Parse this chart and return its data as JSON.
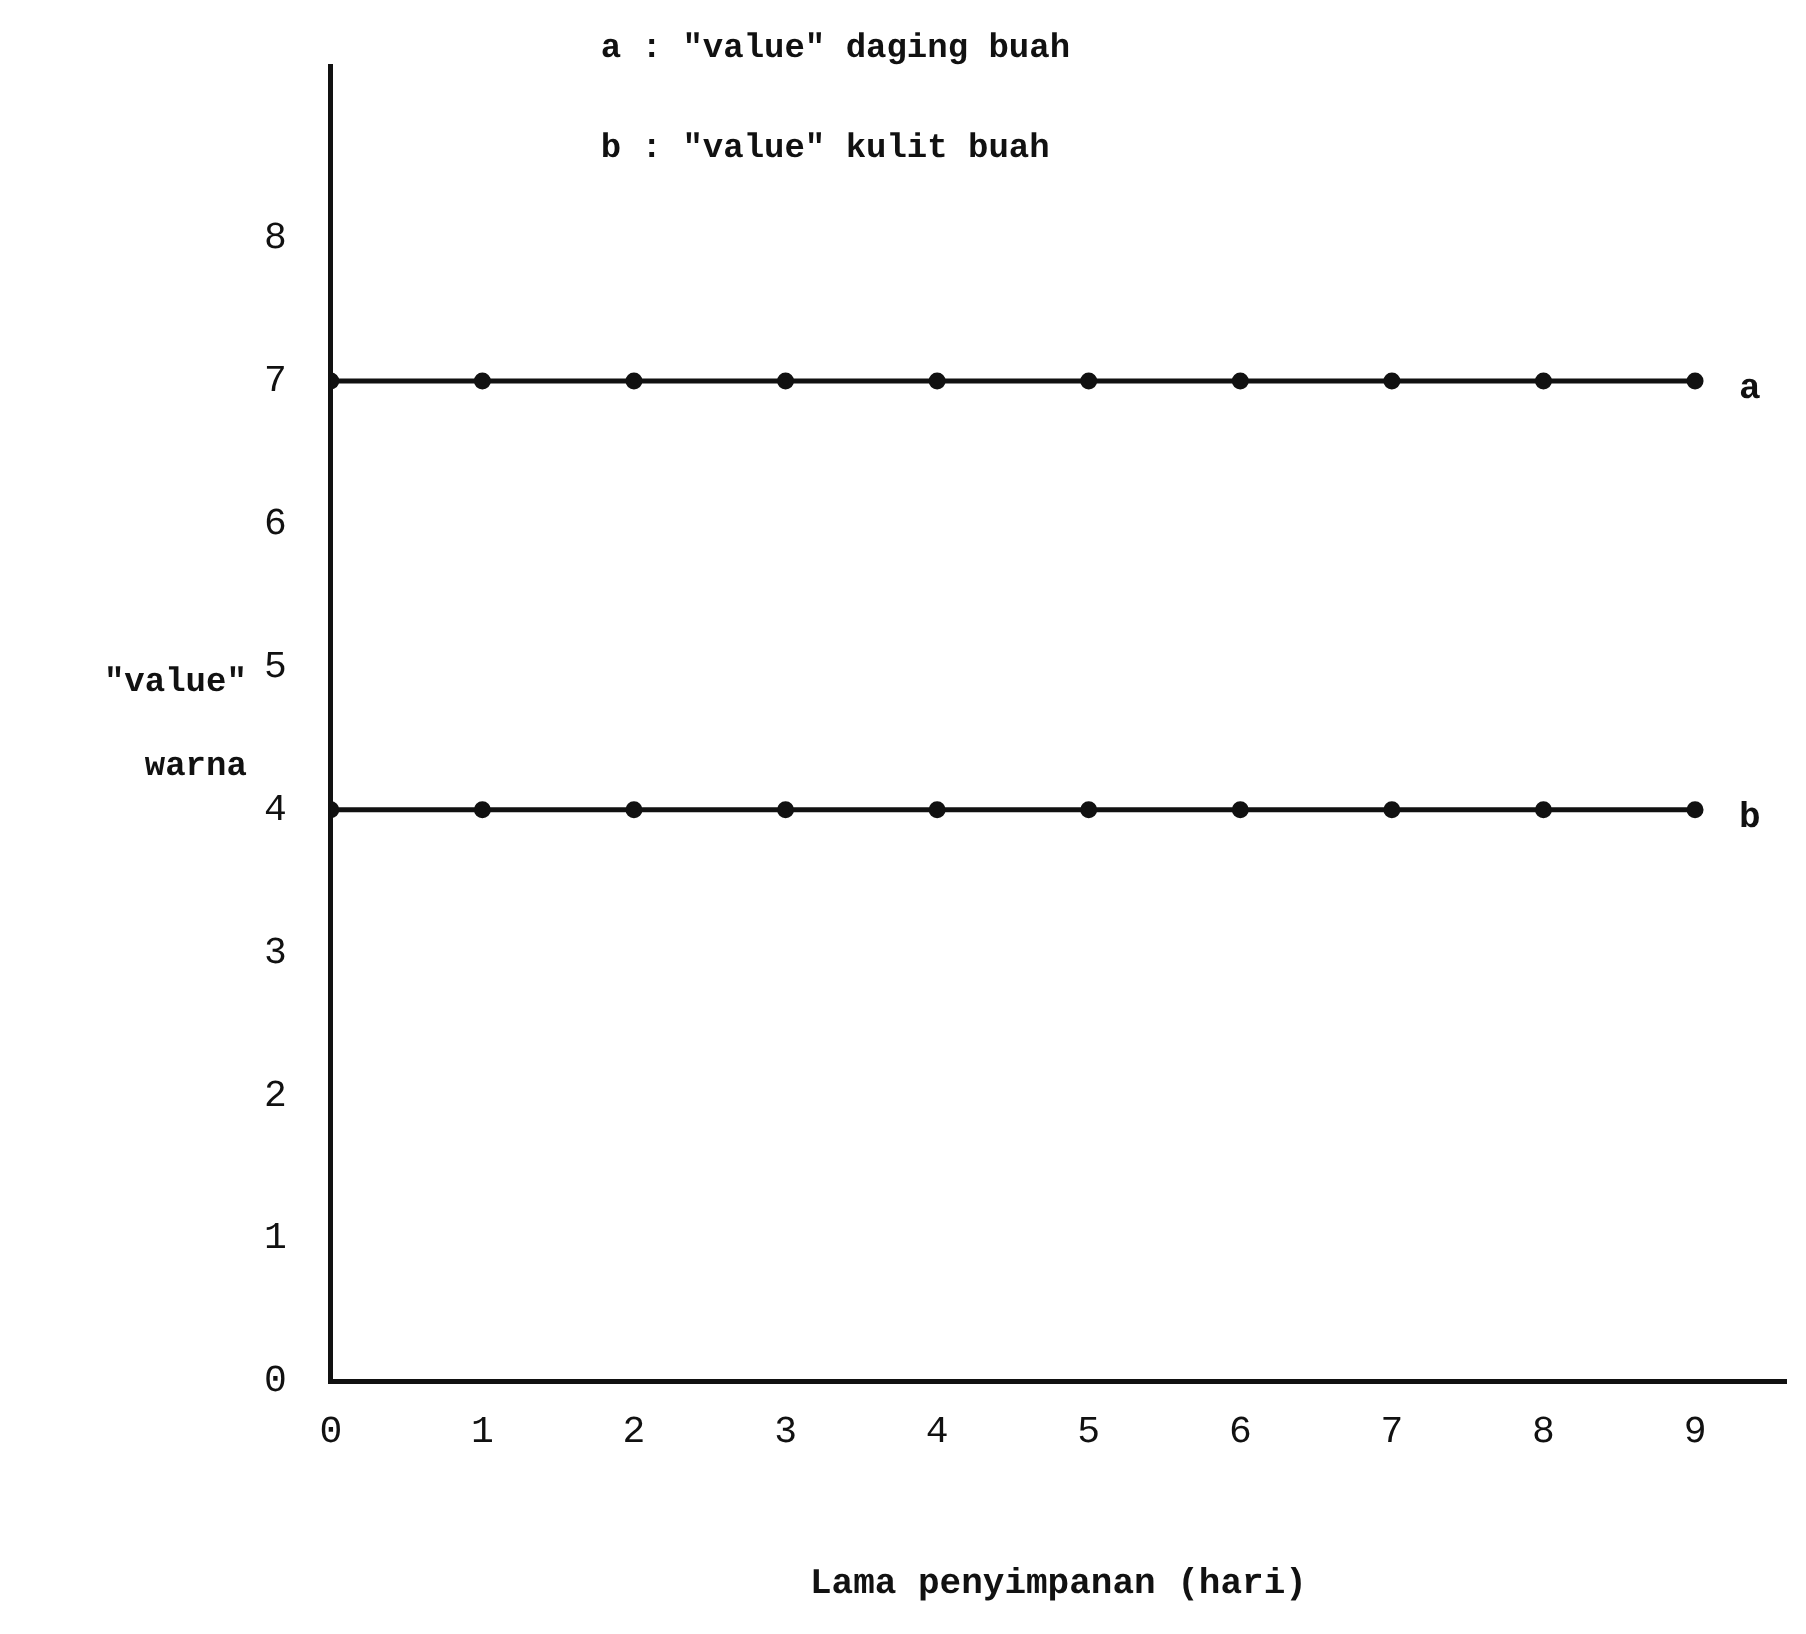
{
  "chart_data": {
    "type": "line",
    "xlabel": "Lama penyimpanan (hari)",
    "ylabel": "\"value\" warna",
    "x": [
      0,
      1,
      2,
      3,
      4,
      5,
      6,
      7,
      8,
      9
    ],
    "series": [
      {
        "name": "a",
        "color": "#111111",
        "values": [
          7,
          7,
          7,
          7,
          7,
          7,
          7,
          7,
          7,
          7
        ]
      },
      {
        "name": "b",
        "color": "#111111",
        "values": [
          4,
          4,
          4,
          4,
          4,
          4,
          4,
          4,
          4,
          4
        ]
      }
    ],
    "annotations": [
      "a : \"value\" daging buah",
      "b : \"value\" kulit buah"
    ],
    "xlim": [
      0,
      9.6
    ],
    "ylim": [
      0,
      9.2
    ],
    "xticks": [
      0,
      1,
      2,
      3,
      4,
      5,
      6,
      7,
      8,
      9
    ],
    "yticks": [
      0,
      1,
      2,
      3,
      4,
      5,
      6,
      7,
      8
    ],
    "grid": false,
    "legend": false,
    "marker": "circle",
    "line_style": "solid"
  }
}
